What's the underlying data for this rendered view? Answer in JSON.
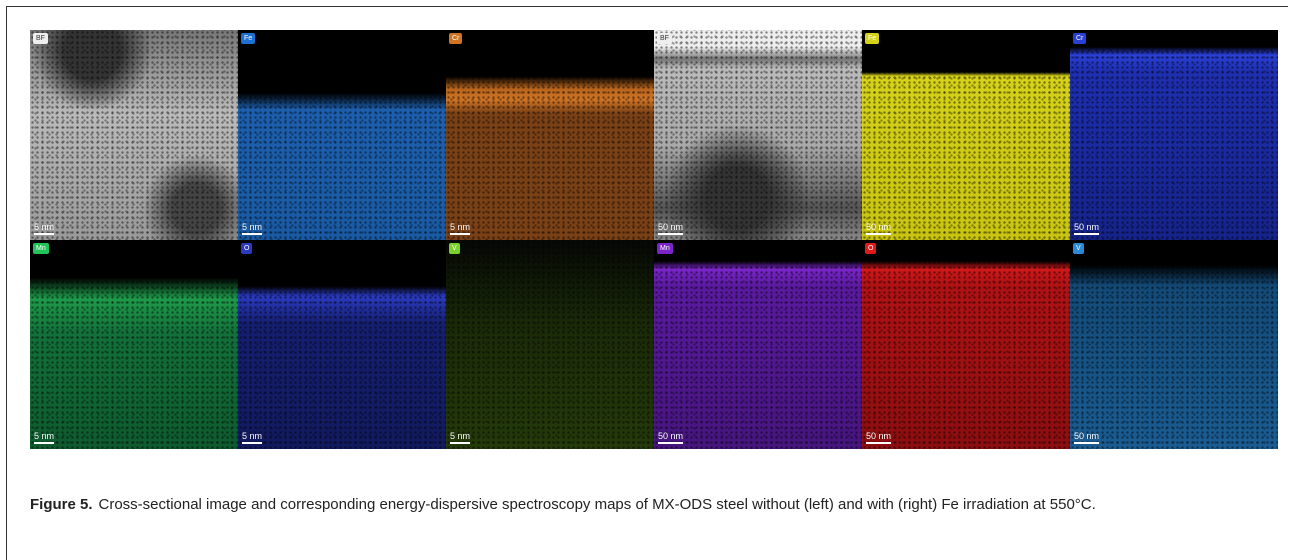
{
  "figure": {
    "panels": [
      {
        "label": "BF",
        "scale_bar": "5 nm"
      },
      {
        "label": "Fe",
        "scale_bar": "5 nm"
      },
      {
        "label": "Cr",
        "scale_bar": "5 nm"
      },
      {
        "label": "BF",
        "scale_bar": "50 nm"
      },
      {
        "label": "Fe",
        "scale_bar": "50 nm"
      },
      {
        "label": "Cr",
        "scale_bar": "50 nm"
      },
      {
        "label": "Mn",
        "scale_bar": "5 nm"
      },
      {
        "label": "O",
        "scale_bar": "5 nm"
      },
      {
        "label": "V",
        "scale_bar": "5 nm"
      },
      {
        "label": "Mn",
        "scale_bar": "50 nm"
      },
      {
        "label": "O",
        "scale_bar": "50 nm"
      },
      {
        "label": "V",
        "scale_bar": "50 nm"
      }
    ],
    "caption": {
      "label": "Figure 5.",
      "text": "Cross-sectional image and corresponding energy-dispersive spectroscopy maps of MX-ODS steel without (left) and with (right) Fe irradiation at 550°C."
    }
  }
}
